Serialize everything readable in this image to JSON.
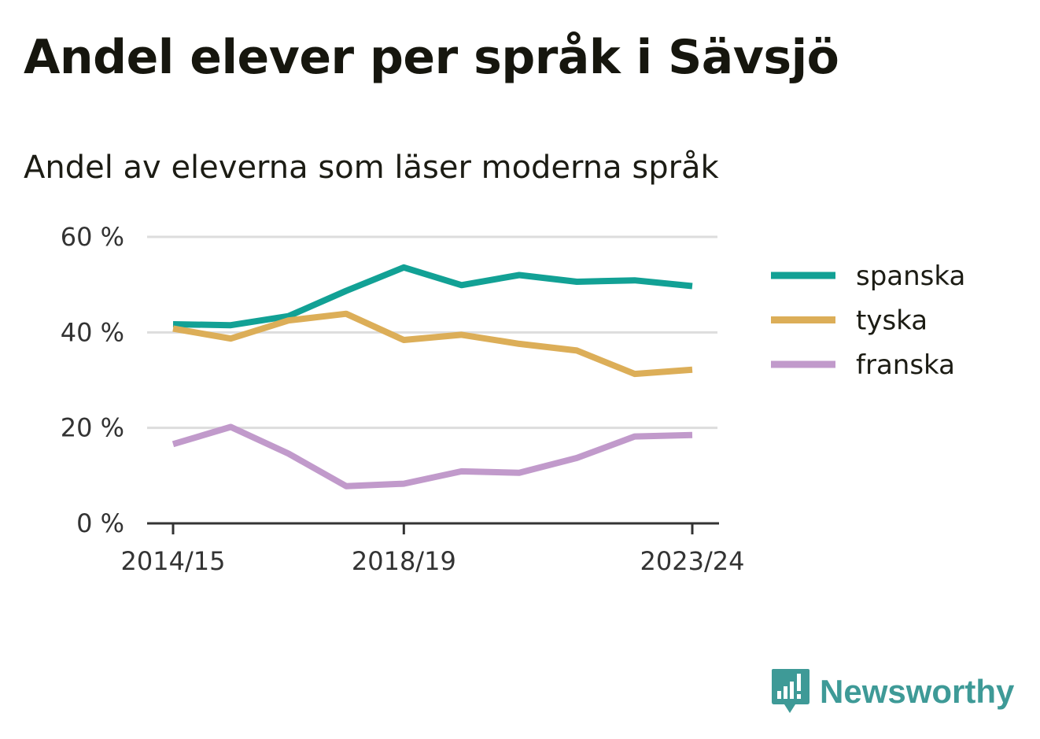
{
  "header": {
    "title": "Andel elever per språk i Sävsjö",
    "subtitle": "Andel av eleverna som läser moderna språk"
  },
  "brand": {
    "name": "Newsworthy",
    "icon": "newsworthy-logo-icon",
    "color": "#3e9a97"
  },
  "chart_data": {
    "type": "line",
    "x": [
      "2014/15",
      "2015/16",
      "2016/17",
      "2017/18",
      "2018/19",
      "2019/20",
      "2020/21",
      "2021/22",
      "2022/23",
      "2023/24"
    ],
    "x_tick_labels": [
      "2014/15",
      "2018/19",
      "2023/24"
    ],
    "y_ticks": [
      "0 %",
      "20 %",
      "40 %",
      "60 %"
    ],
    "y_tick_values": [
      0,
      20,
      40,
      60
    ],
    "ylim": [
      0,
      60
    ],
    "grid": true,
    "legend_position": "right",
    "series": [
      {
        "name": "spanska",
        "color": "#12a195",
        "values": [
          41.7,
          41.5,
          43.4,
          48.7,
          53.6,
          49.9,
          52.0,
          50.6,
          50.9,
          49.7
        ]
      },
      {
        "name": "tyska",
        "color": "#dcae58",
        "values": [
          40.8,
          38.7,
          42.5,
          43.9,
          38.4,
          39.5,
          37.6,
          36.2,
          31.3,
          32.2
        ]
      },
      {
        "name": "franska",
        "color": "#c19acb",
        "values": [
          16.6,
          20.2,
          14.6,
          7.8,
          8.3,
          10.9,
          10.6,
          13.7,
          18.2,
          18.5
        ]
      }
    ]
  }
}
